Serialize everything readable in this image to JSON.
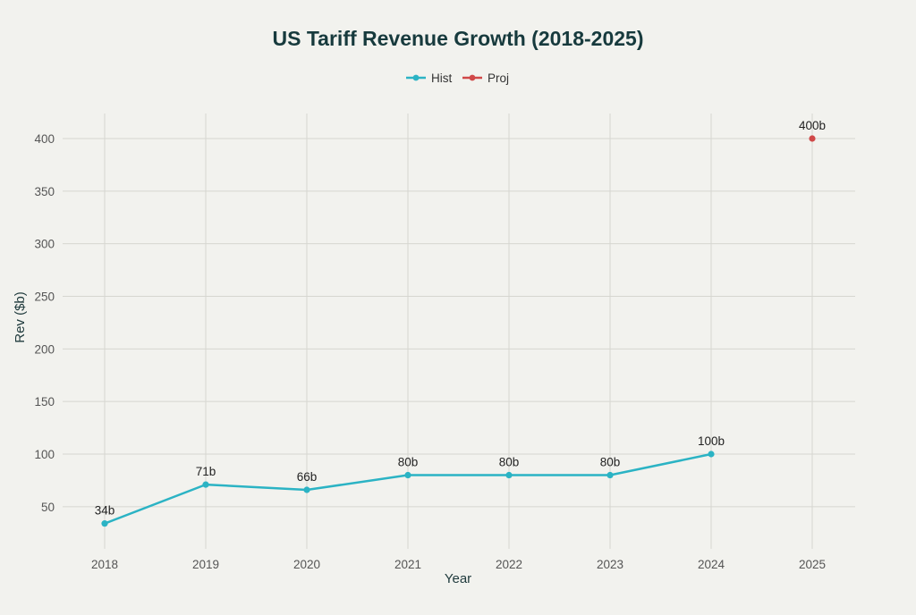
{
  "chart_data": {
    "type": "line",
    "title": "US Tariff Revenue Growth (2018-2025)",
    "xlabel": "Year",
    "ylabel": "Rev ($b)",
    "categories": [
      "2018",
      "2019",
      "2020",
      "2021",
      "2022",
      "2023",
      "2024",
      "2025"
    ],
    "ylim": [
      20,
      425
    ],
    "yticks": [
      50,
      100,
      150,
      200,
      250,
      300,
      350,
      400
    ],
    "grid": true,
    "legend_position": "top-center",
    "series": [
      {
        "name": "Hist",
        "color": "#2bb3c4",
        "points": [
          {
            "x": "2018",
            "y": 34,
            "label": "34b"
          },
          {
            "x": "2019",
            "y": 71,
            "label": "71b"
          },
          {
            "x": "2020",
            "y": 66,
            "label": "66b"
          },
          {
            "x": "2021",
            "y": 80,
            "label": "80b"
          },
          {
            "x": "2022",
            "y": 80,
            "label": "80b"
          },
          {
            "x": "2023",
            "y": 80,
            "label": "80b"
          },
          {
            "x": "2024",
            "y": 100,
            "label": "100b"
          }
        ]
      },
      {
        "name": "Proj",
        "color": "#d04848",
        "points": [
          {
            "x": "2025",
            "y": 400,
            "label": "400b"
          }
        ]
      }
    ]
  }
}
